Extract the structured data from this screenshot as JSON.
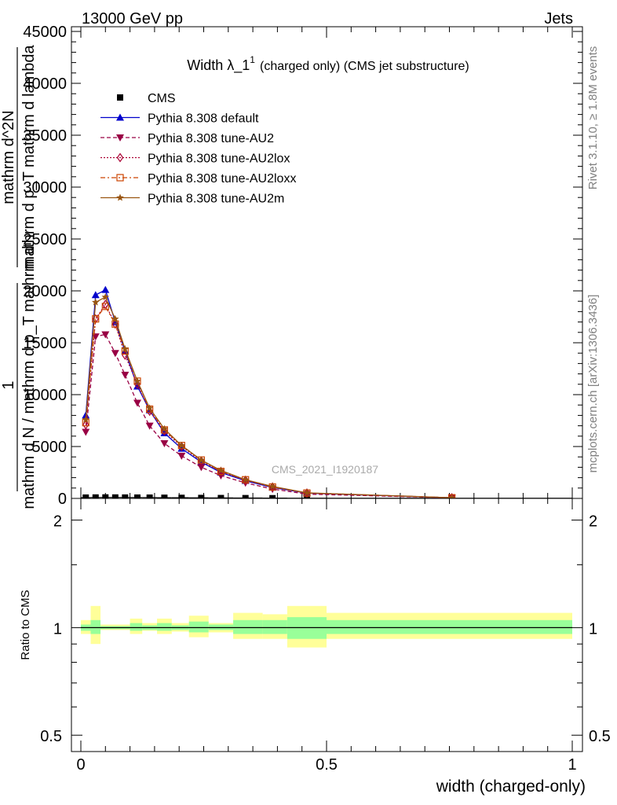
{
  "header": {
    "left": "13000 GeV pp",
    "right": "Jets"
  },
  "side_labels": {
    "rivet": "Rivet 3.1.10, ≥ 1.8M events",
    "mcplots": "mcplots.cern.ch [arXiv:1306.3436]"
  },
  "watermark": "CMS_2021_I1920187",
  "colors": {
    "default": "#0000cc",
    "au2": "#990044",
    "au2lox": "#aa0033",
    "au2loxx": "#cc4400",
    "au2m": "#995511",
    "band_inner": "#99ff99",
    "band_outer": "#ffff99",
    "data": "#000000"
  },
  "chart_data": [
    {
      "type": "line",
      "title_main": "Width λ_1",
      "title_sup": "1",
      "title_rest": "(charged only) (CMS jet substructure)",
      "ylabel_lines": [
        "1",
        "mathrm d N / mathrm d p_T mathrm d",
        "mathrm d^2N",
        "mathrm d p_T mathrm d lambda"
      ],
      "xlim": [
        0,
        1
      ],
      "ylim": [
        0,
        45000
      ],
      "yticks": [
        0,
        5000,
        10000,
        15000,
        20000,
        25000,
        30000,
        35000,
        40000,
        45000
      ],
      "ytick_labels": [
        "0",
        "5000",
        "10000",
        "15000",
        "20000",
        "25000",
        "30000",
        "35000",
        "40000",
        "45000"
      ],
      "legend_position": "top-left",
      "series": [
        {
          "name": "CMS",
          "style": "data",
          "color_key": "data",
          "x": [
            0.01,
            0.03,
            0.05,
            0.07,
            0.09,
            0.115,
            0.14,
            0.17,
            0.205,
            0.245,
            0.285,
            0.335,
            0.39,
            0.46,
            0.755
          ],
          "y": [
            80,
            90,
            95,
            90,
            85,
            80,
            75,
            65,
            55,
            45,
            35,
            28,
            20,
            12,
            2
          ]
        },
        {
          "name": "Pythia 8.308 default",
          "style": "solid",
          "marker": "triangle-up",
          "color_key": "default",
          "x": [
            0.01,
            0.03,
            0.05,
            0.07,
            0.09,
            0.115,
            0.14,
            0.17,
            0.205,
            0.245,
            0.285,
            0.335,
            0.39,
            0.46,
            0.755
          ],
          "y": [
            8000,
            19600,
            20100,
            17000,
            14200,
            10800,
            8500,
            6300,
            4800,
            3500,
            2500,
            1700,
            1050,
            500,
            60
          ]
        },
        {
          "name": "Pythia 8.308 tune-AU2",
          "style": "dashed",
          "marker": "triangle-down",
          "color_key": "au2",
          "x": [
            0.01,
            0.03,
            0.05,
            0.07,
            0.09,
            0.115,
            0.14,
            0.17,
            0.205,
            0.245,
            0.285,
            0.335,
            0.39,
            0.46,
            0.755
          ],
          "y": [
            6400,
            15600,
            15800,
            14000,
            11900,
            9200,
            7000,
            5300,
            4100,
            3000,
            2200,
            1500,
            900,
            420,
            50
          ]
        },
        {
          "name": "Pythia 8.308 tune-AU2lox",
          "style": "dotted",
          "marker": "diamond-open",
          "color_key": "au2lox",
          "x": [
            0.01,
            0.03,
            0.05,
            0.07,
            0.09,
            0.115,
            0.14,
            0.17,
            0.205,
            0.245,
            0.285,
            0.335,
            0.39,
            0.46,
            0.755
          ],
          "y": [
            7100,
            17300,
            18700,
            16800,
            13800,
            11000,
            8400,
            6500,
            5000,
            3600,
            2600,
            1750,
            1100,
            520,
            65
          ]
        },
        {
          "name": "Pythia 8.308 tune-AU2loxx",
          "style": "dashdot",
          "marker": "square-open",
          "color_key": "au2loxx",
          "x": [
            0.01,
            0.03,
            0.05,
            0.07,
            0.09,
            0.115,
            0.14,
            0.17,
            0.205,
            0.245,
            0.285,
            0.335,
            0.39,
            0.46,
            0.755
          ],
          "y": [
            7300,
            17300,
            18500,
            16800,
            14200,
            11300,
            8600,
            6600,
            5100,
            3700,
            2600,
            1800,
            1100,
            520,
            65
          ]
        },
        {
          "name": "Pythia 8.308 tune-AU2m",
          "style": "solid",
          "marker": "star",
          "color_key": "au2m",
          "x": [
            0.01,
            0.03,
            0.05,
            0.07,
            0.09,
            0.115,
            0.14,
            0.17,
            0.205,
            0.245,
            0.285,
            0.335,
            0.39,
            0.46,
            0.755
          ],
          "y": [
            7600,
            18900,
            19400,
            17300,
            14400,
            11300,
            8700,
            6700,
            5100,
            3700,
            2700,
            1800,
            1150,
            540,
            70
          ]
        }
      ]
    },
    {
      "type": "area",
      "ylabel": "Ratio to CMS",
      "xlabel": "width (charged-only)",
      "xlim": [
        0,
        1
      ],
      "ylim": [
        0.45,
        2.3
      ],
      "ylog": true,
      "xticks": [
        0,
        0.5,
        1
      ],
      "xtick_labels": [
        "0",
        "0.5",
        "1"
      ],
      "yticks": [
        0.5,
        1,
        2
      ],
      "ytick_labels": [
        "0.5",
        "1",
        "2"
      ],
      "ratio_bins": [
        {
          "lo": 0.0,
          "hi": 0.02,
          "inner": [
            0.98,
            1.02
          ],
          "outer": [
            0.96,
            1.05
          ]
        },
        {
          "lo": 0.02,
          "hi": 0.04,
          "inner": [
            0.96,
            1.05
          ],
          "outer": [
            0.9,
            1.15
          ]
        },
        {
          "lo": 0.04,
          "hi": 0.1,
          "inner": [
            0.99,
            1.01
          ],
          "outer": [
            0.985,
            1.02
          ]
        },
        {
          "lo": 0.1,
          "hi": 0.125,
          "inner": [
            0.98,
            1.03
          ],
          "outer": [
            0.96,
            1.06
          ]
        },
        {
          "lo": 0.125,
          "hi": 0.155,
          "inner": [
            0.985,
            1.015
          ],
          "outer": [
            0.98,
            1.03
          ]
        },
        {
          "lo": 0.155,
          "hi": 0.185,
          "inner": [
            0.98,
            1.03
          ],
          "outer": [
            0.96,
            1.06
          ]
        },
        {
          "lo": 0.185,
          "hi": 0.22,
          "inner": [
            0.985,
            1.015
          ],
          "outer": [
            0.975,
            1.03
          ]
        },
        {
          "lo": 0.22,
          "hi": 0.26,
          "inner": [
            0.97,
            1.04
          ],
          "outer": [
            0.94,
            1.08
          ]
        },
        {
          "lo": 0.26,
          "hi": 0.31,
          "inner": [
            0.985,
            1.02
          ],
          "outer": [
            0.97,
            1.03
          ]
        },
        {
          "lo": 0.31,
          "hi": 0.37,
          "inner": [
            0.96,
            1.05
          ],
          "outer": [
            0.93,
            1.1
          ]
        },
        {
          "lo": 0.37,
          "hi": 0.42,
          "inner": [
            0.96,
            1.05
          ],
          "outer": [
            0.93,
            1.09
          ]
        },
        {
          "lo": 0.42,
          "hi": 0.5,
          "inner": [
            0.93,
            1.07
          ],
          "outer": [
            0.88,
            1.15
          ]
        },
        {
          "lo": 0.5,
          "hi": 1.0,
          "inner": [
            0.96,
            1.05
          ],
          "outer": [
            0.93,
            1.1
          ]
        }
      ]
    }
  ]
}
